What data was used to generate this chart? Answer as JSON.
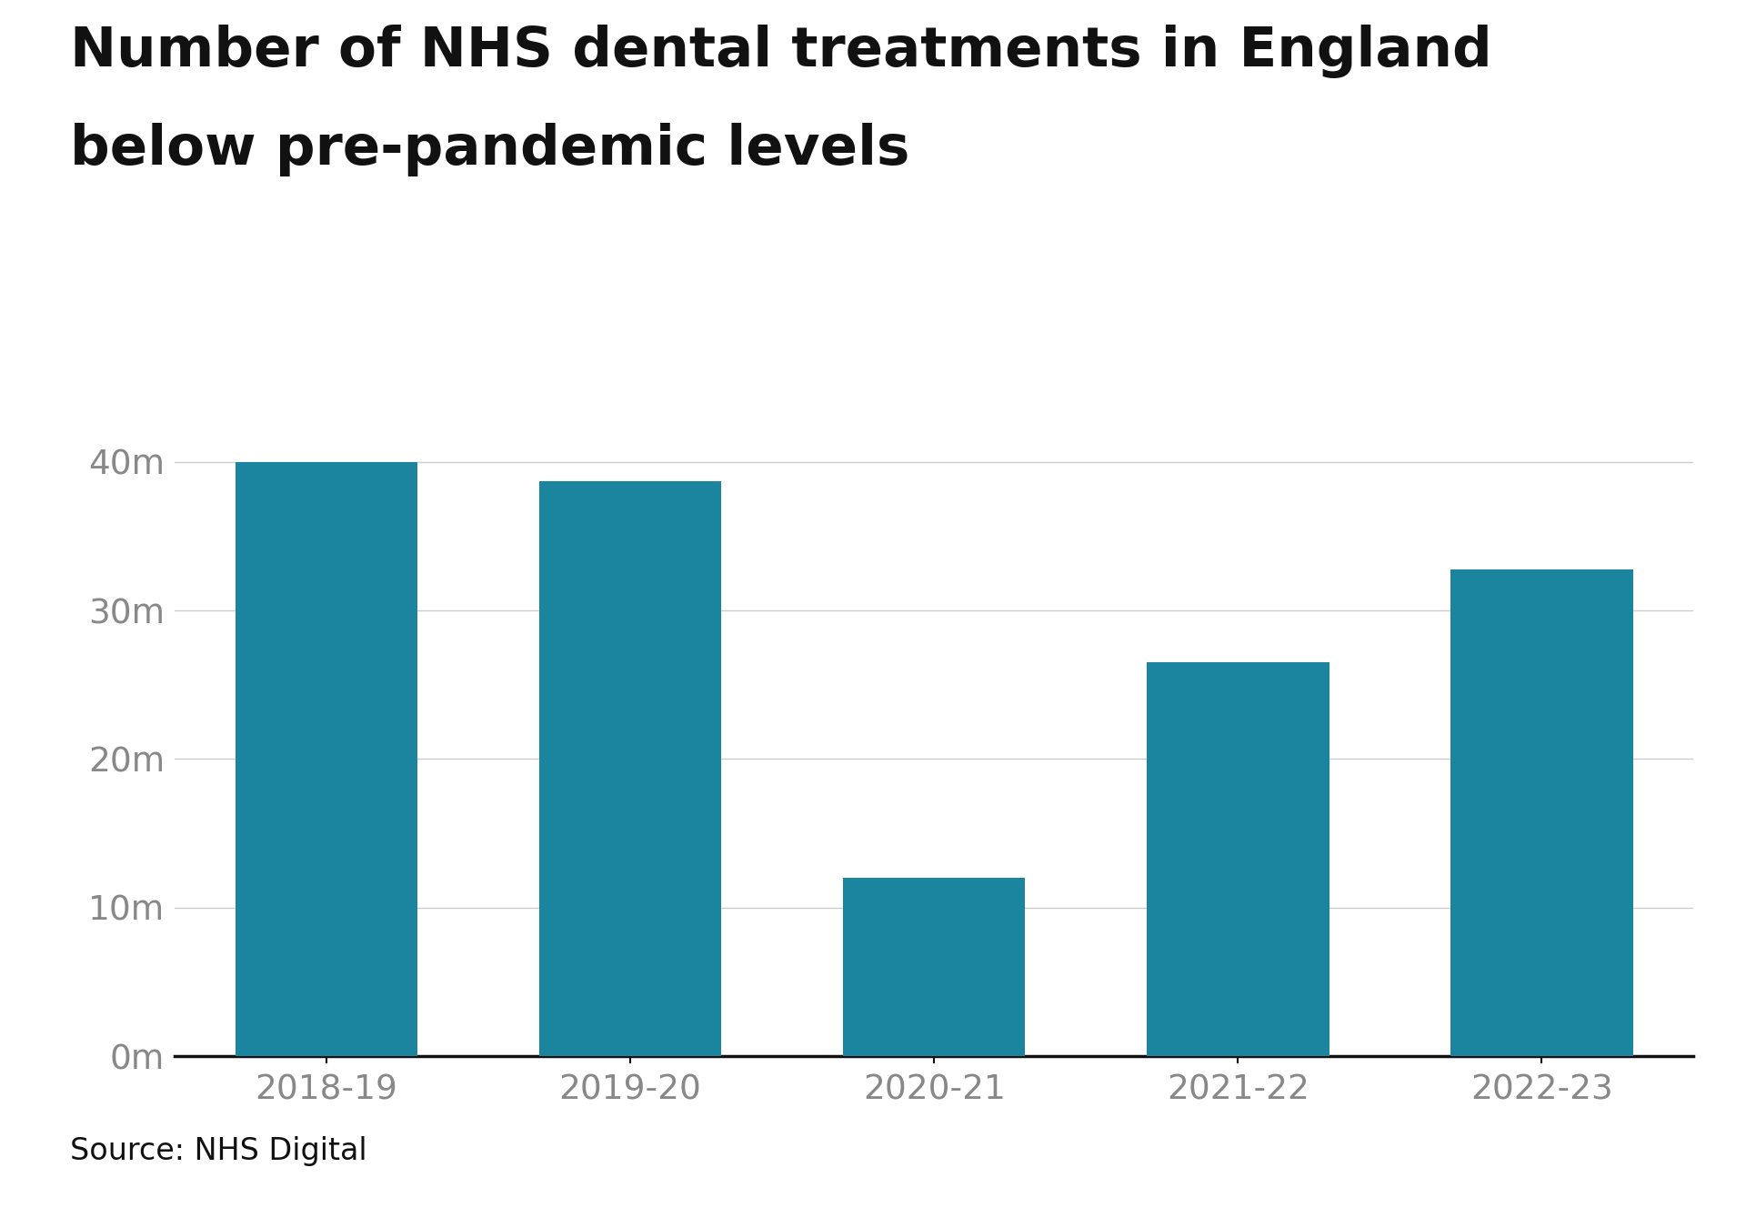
{
  "title_line1": "Number of NHS dental treatments in England",
  "title_line2": "below pre-pandemic levels",
  "categories": [
    "2018-19",
    "2019-20",
    "2020-21",
    "2021-22",
    "2022-23"
  ],
  "values": [
    40000000,
    38700000,
    12000000,
    26500000,
    32800000
  ],
  "bar_color": "#1b849e",
  "background_color": "#ffffff",
  "yticks": [
    0,
    10000000,
    20000000,
    30000000,
    40000000
  ],
  "ytick_labels": [
    "0m",
    "10m",
    "20m",
    "30m",
    "40m"
  ],
  "ylim": [
    0,
    43000000
  ],
  "title_fontsize": 44,
  "tick_fontsize": 27,
  "source_text": "Source: NHS Digital",
  "source_fontsize": 24,
  "grid_color": "#cccccc",
  "axis_color": "#111111",
  "tick_color": "#888888",
  "bar_width": 0.6
}
